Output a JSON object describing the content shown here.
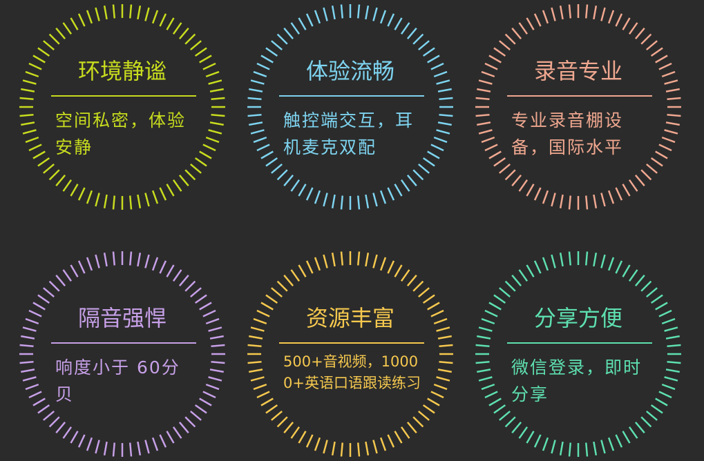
{
  "badges": [
    {
      "title": "环境静谧",
      "desc": "空间私密，体验安静",
      "color": "#c8dc1e",
      "size": "normal"
    },
    {
      "title": "体验流畅",
      "desc": "触控端交互，耳机麦克双配",
      "color": "#7ed4f0",
      "size": "normal"
    },
    {
      "title": "录音专业",
      "desc": "专业录音棚设备，国际水平",
      "color": "#f0a890",
      "size": "normal"
    },
    {
      "title": "隔音强悍",
      "desc": "响度小于 60分贝",
      "color": "#c7a0e8",
      "size": "normal"
    },
    {
      "title": "资源丰富",
      "desc": "500+音视频，10000+英语口语跟读练习",
      "color": "#f5c84e",
      "size": "small"
    },
    {
      "title": "分享方便",
      "desc": "微信登录，即时分享",
      "color": "#5ee0b0",
      "size": "normal"
    }
  ]
}
